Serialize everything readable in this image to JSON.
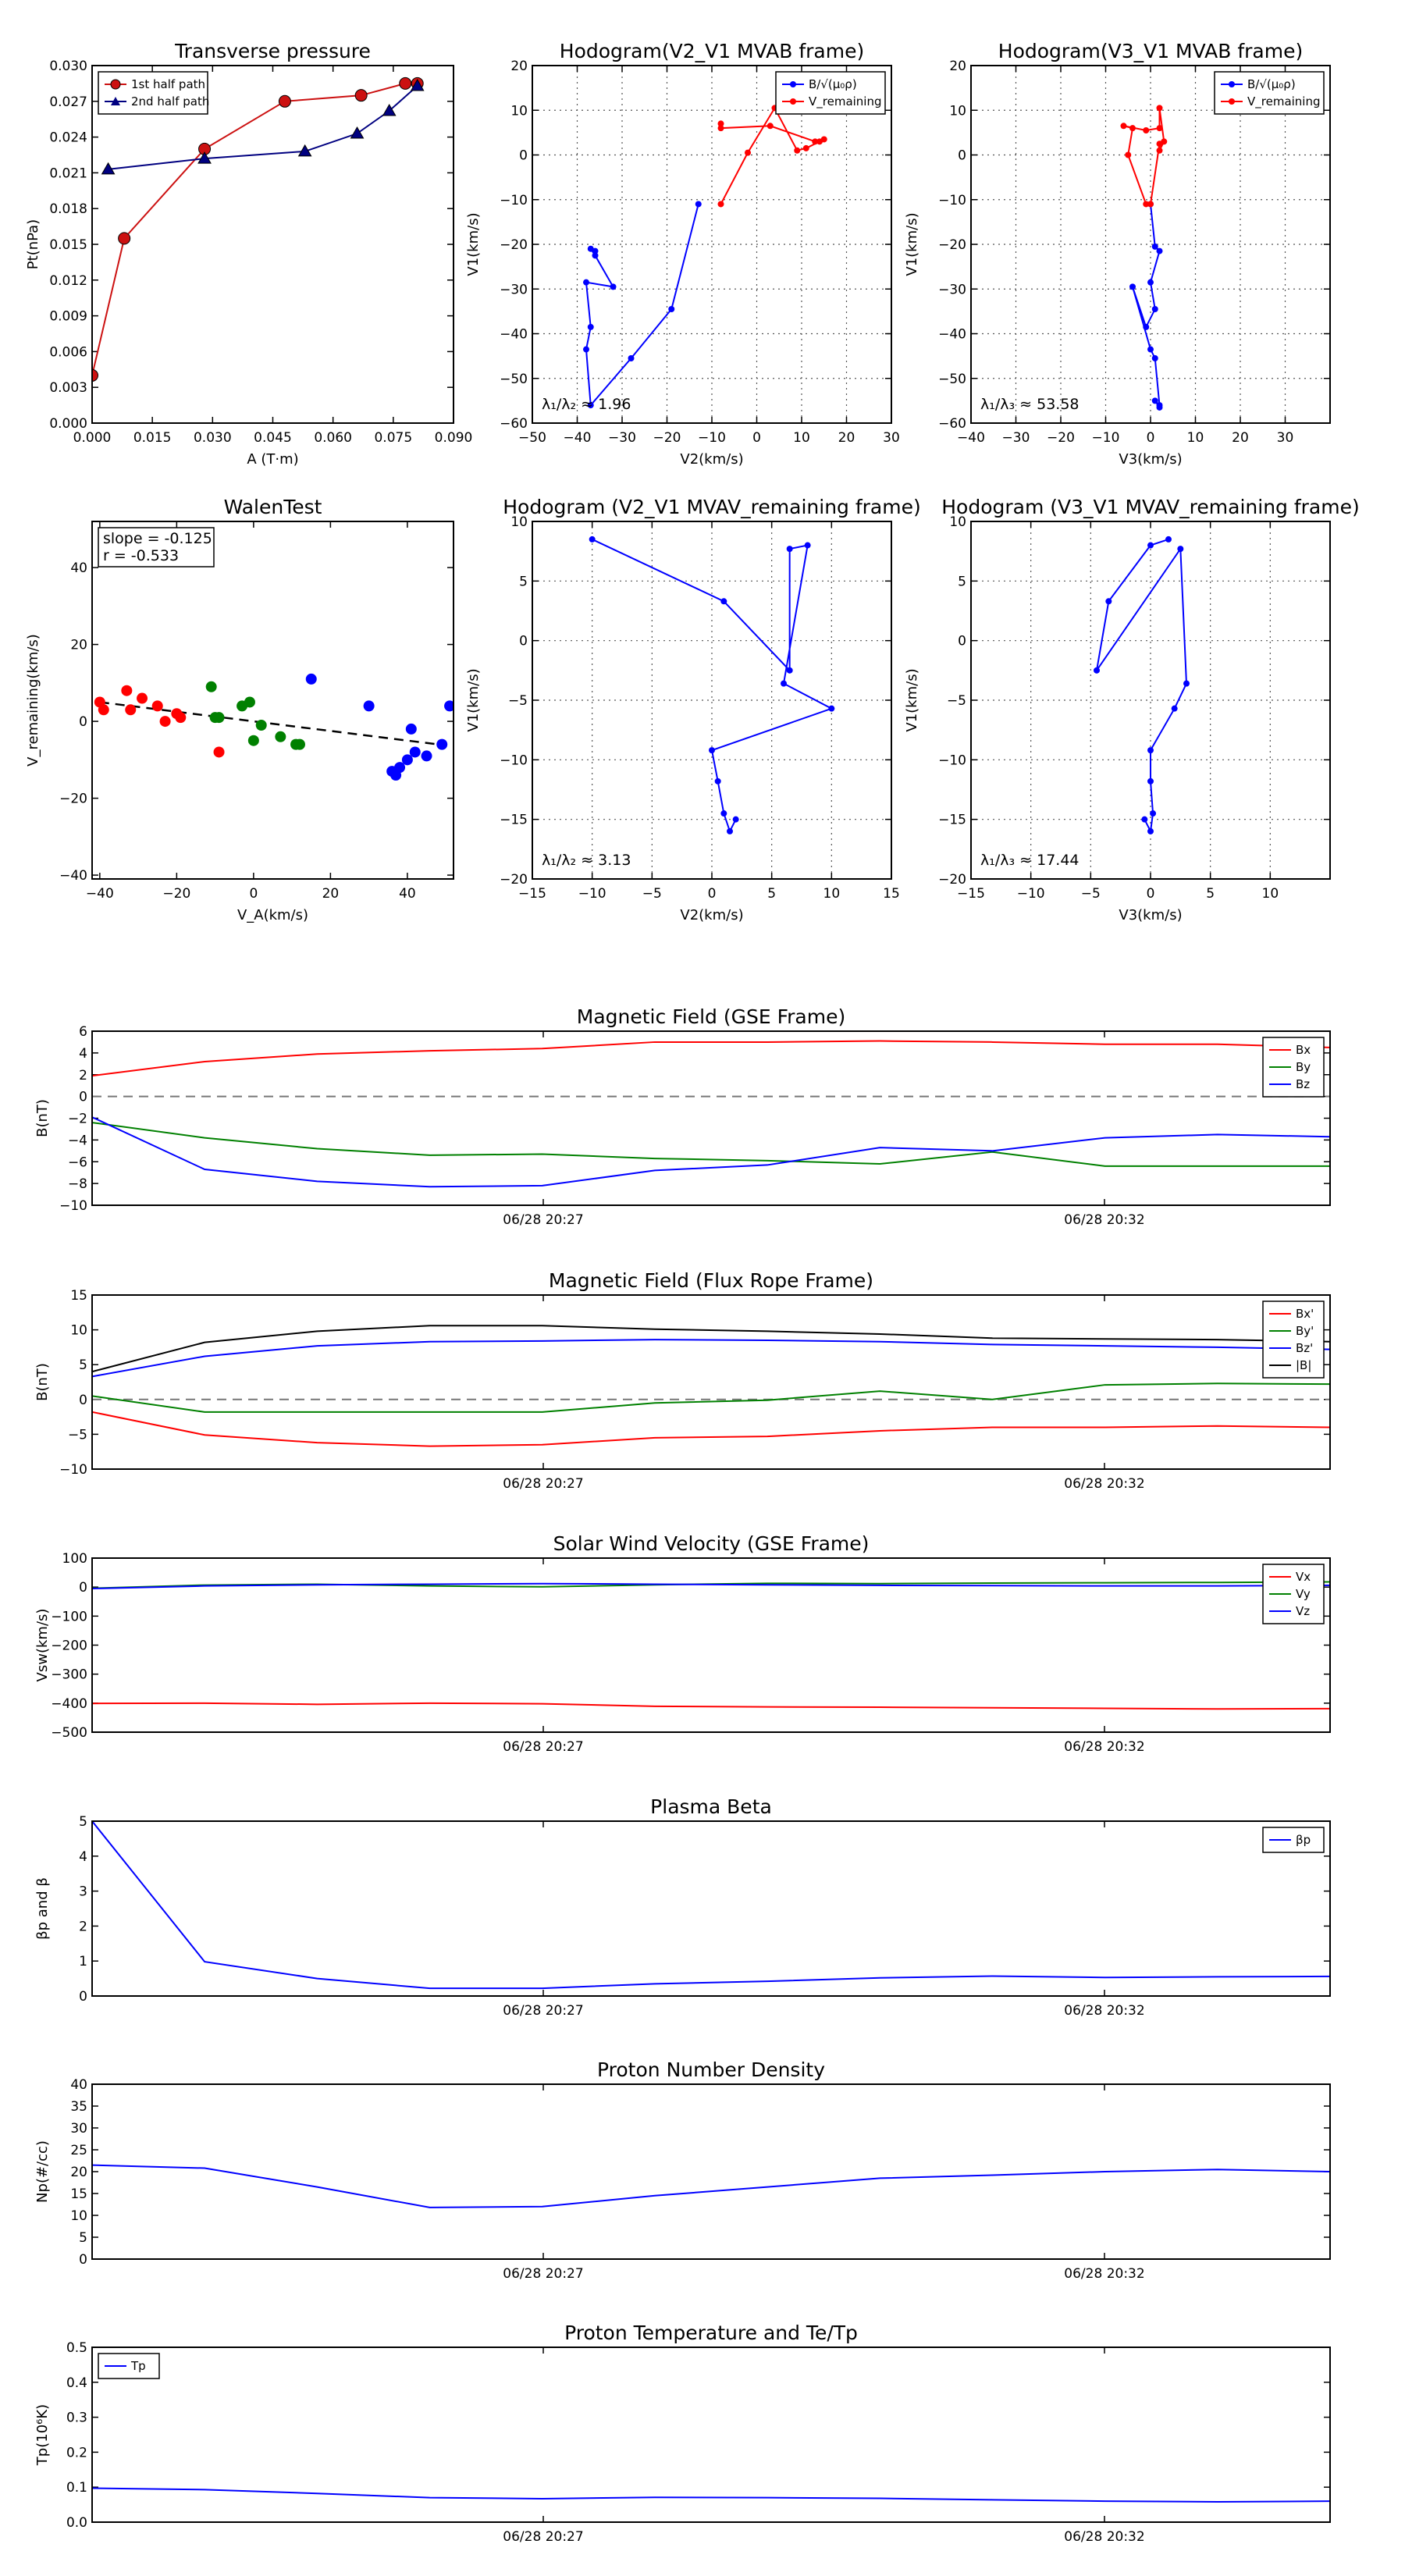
{
  "chart_data": [
    {
      "type": "line",
      "title": "Transverse pressure",
      "xlabel": "A (T·m)",
      "ylabel": "Pt(nPa)",
      "xlim": [
        0.0,
        0.09
      ],
      "ylim": [
        0.0,
        0.03
      ],
      "xticks": [
        "0.000",
        "0.015",
        "0.030",
        "0.045",
        "0.060",
        "0.075",
        "0.090"
      ],
      "yticks": [
        "0.000",
        "0.003",
        "0.006",
        "0.009",
        "0.012",
        "0.015",
        "0.018",
        "0.021",
        "0.024",
        "0.027",
        "0.030"
      ],
      "grid": false,
      "legend": "top-left",
      "series": [
        {
          "name": "1st half path",
          "color": "#cc1111",
          "marker": "circle",
          "x": [
            0.0,
            0.008,
            0.028,
            0.048,
            0.067,
            0.078,
            0.081
          ],
          "y": [
            0.004,
            0.0155,
            0.023,
            0.027,
            0.0275,
            0.0285,
            0.0285
          ]
        },
        {
          "name": "2nd half path",
          "color": "#000080",
          "marker": "triangle",
          "x": [
            0.004,
            0.028,
            0.053,
            0.066,
            0.074,
            0.081
          ],
          "y": [
            0.0213,
            0.0222,
            0.0228,
            0.0243,
            0.0262,
            0.0283
          ]
        }
      ]
    },
    {
      "type": "line",
      "title": "Hodogram(V2_V1 MVAB frame)",
      "xlabel": "V2(km/s)",
      "ylabel": "V1(km/s)",
      "xlim": [
        -50,
        30
      ],
      "ylim": [
        -60,
        20
      ],
      "xticks": [
        "−50",
        "−40",
        "−30",
        "−20",
        "−10",
        "0",
        "10",
        "20",
        "30"
      ],
      "yticks": [
        "−60",
        "−50",
        "−40",
        "−30",
        "−20",
        "−10",
        "0",
        "10",
        "20"
      ],
      "grid": true,
      "legend": "top-right",
      "annotation": "λ₁/λ₂ ≈ 1.96",
      "series": [
        {
          "name": "B/√(μ₀ρ)",
          "color": "#0000ff",
          "x": [
            -13,
            -19,
            -28,
            -37,
            -38,
            -37,
            -38,
            -32,
            -36,
            -37,
            -36
          ],
          "y": [
            -11,
            -34.5,
            -45.5,
            -56,
            -43.5,
            -38.5,
            -28.5,
            -29.5,
            -22.5,
            -21,
            -21.5
          ]
        },
        {
          "name": "V_remaining",
          "color": "#ff0000",
          "x": [
            -8,
            -2,
            4,
            9,
            11,
            14,
            15,
            13,
            3,
            -8,
            -8
          ],
          "y": [
            -11,
            0.5,
            10.5,
            1,
            1.5,
            3,
            3.5,
            3,
            6.5,
            6,
            7
          ]
        }
      ]
    },
    {
      "type": "line",
      "title": "Hodogram(V3_V1 MVAB frame)",
      "xlabel": "V3(km/s)",
      "ylabel": "V1(km/s)",
      "xlim": [
        -40,
        40
      ],
      "ylim": [
        -60,
        20
      ],
      "xticks": [
        "−40",
        "−30",
        "−20",
        "−10",
        "0",
        "10",
        "20",
        "30"
      ],
      "yticks": [
        "−60",
        "−50",
        "−40",
        "−30",
        "−20",
        "−10",
        "0",
        "10",
        "20"
      ],
      "grid": true,
      "legend": "top-right",
      "annotation": "λ₁/λ₃ ≈ 53.58",
      "series": [
        {
          "name": "B/√(μ₀ρ)",
          "color": "#0000ff",
          "x": [
            0,
            1,
            2,
            0,
            1,
            -1,
            -4,
            0,
            1,
            2,
            1,
            2
          ],
          "y": [
            -11,
            -20.5,
            -21.5,
            -28.5,
            -34.5,
            -38.5,
            -29.5,
            -43.5,
            -45.5,
            -56,
            -55,
            -56.5
          ]
        },
        {
          "name": "V_remaining",
          "color": "#ff0000",
          "x": [
            -1,
            -5,
            -4,
            -6,
            -1,
            2,
            2,
            3,
            2,
            2,
            0
          ],
          "y": [
            -11,
            0,
            6,
            6.5,
            5.5,
            6,
            10.5,
            3,
            1,
            2.5,
            -11
          ]
        }
      ]
    },
    {
      "type": "scatter",
      "title": "WalenTest",
      "xlabel": "V_A(km/s)",
      "ylabel": "V_remaining(km/s)",
      "xlim": [
        -42,
        52
      ],
      "ylim": [
        -41,
        52
      ],
      "xticks": [
        "−40",
        "−20",
        "0",
        "20",
        "40"
      ],
      "yticks": [
        "−40",
        "−20",
        "0",
        "20",
        "40"
      ],
      "grid": false,
      "annotation": [
        "slope = -0.125",
        "r = -0.533"
      ],
      "fit_line": {
        "slope": -0.125,
        "intercept": 0.0
      },
      "series": [
        {
          "color": "#ff0000",
          "x": [
            -40,
            -39,
            -33,
            -32,
            -29,
            -25,
            -23,
            -20,
            -19,
            -9
          ],
          "y": [
            5,
            3,
            8,
            3,
            6,
            4,
            0,
            2,
            1,
            -8
          ]
        },
        {
          "color": "#008000",
          "x": [
            -11,
            -10,
            -9,
            -3,
            -1,
            0,
            2,
            7,
            11,
            12
          ],
          "y": [
            9,
            1,
            1,
            4,
            5,
            -5,
            -1,
            -4,
            -6,
            -6
          ]
        },
        {
          "color": "#0000ff",
          "x": [
            15,
            30,
            36,
            37,
            38,
            40,
            41,
            42,
            45,
            49,
            51
          ],
          "y": [
            11,
            4,
            -13,
            -14,
            -12,
            -10,
            -2,
            -8,
            -9,
            -6,
            4
          ]
        }
      ]
    },
    {
      "type": "line",
      "title": "Hodogram (V2_V1 MVAV_remaining frame)",
      "xlabel": "V2(km/s)",
      "ylabel": "V1(km/s)",
      "xlim": [
        -15,
        15
      ],
      "ylim": [
        -20,
        10
      ],
      "xticks": [
        "−15",
        "−10",
        "−5",
        "0",
        "5",
        "10",
        "15"
      ],
      "yticks": [
        "−20",
        "−15",
        "−10",
        "−5",
        "0",
        "5",
        "10"
      ],
      "grid": true,
      "annotation": "λ₁/λ₂ ≈ 3.13",
      "series": [
        {
          "color": "#0000ff",
          "x": [
            -10,
            1,
            6.5,
            6.5,
            8,
            6,
            10,
            0,
            0.5,
            1,
            1.5,
            2
          ],
          "y": [
            8.5,
            3.3,
            -2.5,
            7.7,
            8,
            -3.6,
            -5.7,
            -9.2,
            -11.8,
            -14.5,
            -16,
            -15
          ]
        }
      ]
    },
    {
      "type": "line",
      "title": "Hodogram (V3_V1 MVAV_remaining frame)",
      "xlabel": "V3(km/s)",
      "ylabel": "V1(km/s)",
      "xlim": [
        -15,
        15
      ],
      "ylim": [
        -20,
        10
      ],
      "xticks": [
        "−15",
        "−10",
        "−5",
        "0",
        "5",
        "10"
      ],
      "yticks": [
        "−20",
        "−15",
        "−10",
        "−5",
        "0",
        "5",
        "10"
      ],
      "grid": true,
      "annotation": "λ₁/λ₃ ≈ 17.44",
      "series": [
        {
          "color": "#0000ff",
          "x": [
            1.5,
            0,
            -3.5,
            -4.5,
            2.5,
            3,
            2,
            0,
            0,
            0.2,
            0,
            -0.5
          ],
          "y": [
            8.5,
            8,
            3.3,
            -2.5,
            7.7,
            -3.6,
            -5.7,
            -9.2,
            -11.8,
            -14.5,
            -16,
            -15
          ]
        }
      ]
    },
    {
      "type": "line",
      "title": "Magnetic Field (GSE Frame)",
      "xlabel": "",
      "ylabel": "B(nT)",
      "ylim": [
        -10,
        6
      ],
      "yticks": [
        "−10",
        "−8",
        "−6",
        "−4",
        "−2",
        "0",
        "2",
        "4",
        "6"
      ],
      "xtick_labels": [
        "06/28 20:27",
        "06/28 20:32"
      ],
      "zero_line": true,
      "legend": "top-right",
      "series": [
        {
          "name": "Bx",
          "color": "#ff0000",
          "values": [
            1.9,
            3.2,
            3.9,
            4.2,
            4.4,
            5.0,
            5.0,
            5.1,
            5.0,
            4.8,
            4.8,
            4.5
          ]
        },
        {
          "name": "By",
          "color": "#008000",
          "values": [
            -2.4,
            -3.8,
            -4.8,
            -5.4,
            -5.3,
            -5.7,
            -5.9,
            -6.2,
            -5.1,
            -6.4,
            -6.4,
            -6.4
          ]
        },
        {
          "name": "Bz",
          "color": "#0000ff",
          "values": [
            -1.9,
            -6.7,
            -7.8,
            -8.3,
            -8.2,
            -6.8,
            -6.3,
            -4.7,
            -5.0,
            -3.8,
            -3.5,
            -3.7
          ]
        }
      ]
    },
    {
      "type": "line",
      "title": "Magnetic Field (Flux Rope Frame)",
      "xlabel": "",
      "ylabel": "B(nT)",
      "ylim": [
        -10,
        15
      ],
      "yticks": [
        "−10",
        "−5",
        "0",
        "5",
        "10",
        "15"
      ],
      "xtick_labels": [
        "06/28 20:27",
        "06/28 20:32"
      ],
      "zero_line": true,
      "legend": "top-right",
      "series": [
        {
          "name": "Bx'",
          "color": "#ff0000",
          "values": [
            -1.8,
            -5.1,
            -6.2,
            -6.7,
            -6.5,
            -5.5,
            -5.3,
            -4.5,
            -4.0,
            -4.0,
            -3.8,
            -4.0
          ]
        },
        {
          "name": "By'",
          "color": "#008000",
          "values": [
            0.5,
            -1.8,
            -1.8,
            -1.8,
            -1.8,
            -0.5,
            -0.1,
            1.2,
            0.0,
            2.1,
            2.3,
            2.2
          ]
        },
        {
          "name": "Bz'",
          "color": "#0000ff",
          "values": [
            3.3,
            6.2,
            7.7,
            8.3,
            8.4,
            8.6,
            8.5,
            8.3,
            7.9,
            7.7,
            7.5,
            7.2
          ]
        },
        {
          "name": "|B|",
          "color": "#000000",
          "values": [
            4.0,
            8.2,
            9.8,
            10.6,
            10.6,
            10.1,
            9.8,
            9.4,
            8.8,
            8.7,
            8.6,
            8.3
          ]
        }
      ]
    },
    {
      "type": "line",
      "title": "Solar Wind Velocity (GSE Frame)",
      "xlabel": "",
      "ylabel": "Vsw(km/s)",
      "ylim": [
        -500,
        100
      ],
      "yticks": [
        "−500",
        "−400",
        "−300",
        "−200",
        "−100",
        "0",
        "100"
      ],
      "xtick_labels": [
        "06/28 20:27",
        "06/28 20:32"
      ],
      "legend": "top-right",
      "series": [
        {
          "name": "Vx",
          "color": "#ff0000",
          "values": [
            -401,
            -400,
            -404,
            -400,
            -402,
            -411,
            -413,
            -414,
            -416,
            -418,
            -420,
            -419
          ]
        },
        {
          "name": "Vy",
          "color": "#008000",
          "values": [
            -4,
            7,
            10,
            4,
            1,
            8,
            13,
            12,
            14,
            15,
            16,
            18
          ]
        },
        {
          "name": "Vz",
          "color": "#0000ff",
          "values": [
            -5,
            4,
            8,
            10,
            12,
            10,
            8,
            6,
            5,
            4,
            4,
            6
          ]
        }
      ]
    },
    {
      "type": "line",
      "title": "Plasma Beta",
      "xlabel": "",
      "ylabel": "βp and β",
      "ylim": [
        0,
        5
      ],
      "yticks": [
        "0",
        "1",
        "2",
        "3",
        "4",
        "5"
      ],
      "xtick_labels": [
        "06/28 20:27",
        "06/28 20:32"
      ],
      "legend": "top-right",
      "series": [
        {
          "name": "βp",
          "color": "#0000ff",
          "values": [
            5.0,
            0.98,
            0.5,
            0.22,
            0.22,
            0.35,
            0.42,
            0.52,
            0.57,
            0.53,
            0.55,
            0.56
          ]
        }
      ]
    },
    {
      "type": "line",
      "title": "Proton Number Density",
      "xlabel": "",
      "ylabel": "Np(#/cc)",
      "ylim": [
        0,
        40
      ],
      "yticks": [
        "0",
        "5",
        "10",
        "15",
        "20",
        "25",
        "30",
        "35",
        "40"
      ],
      "xtick_labels": [
        "06/28 20:27",
        "06/28 20:32"
      ],
      "series": [
        {
          "color": "#0000ff",
          "values": [
            21.5,
            20.8,
            16.5,
            11.8,
            12.0,
            14.5,
            16.5,
            18.5,
            19.2,
            20.0,
            20.5,
            20.0
          ]
        }
      ]
    },
    {
      "type": "line",
      "title": "Proton Temperature and Te/Tp",
      "xlabel": "",
      "ylabel": "Tp(10⁶K)",
      "ylim": [
        0,
        0.5
      ],
      "yticks": [
        "0.0",
        "0.1",
        "0.2",
        "0.3",
        "0.4",
        "0.5"
      ],
      "xtick_labels": [
        "06/28 20:27",
        "06/28 20:32"
      ],
      "legend": "top-left",
      "series": [
        {
          "name": "Tp",
          "color": "#0000ff",
          "values": [
            0.097,
            0.093,
            0.082,
            0.07,
            0.067,
            0.071,
            0.07,
            0.068,
            0.064,
            0.06,
            0.058,
            0.06
          ]
        }
      ]
    }
  ]
}
